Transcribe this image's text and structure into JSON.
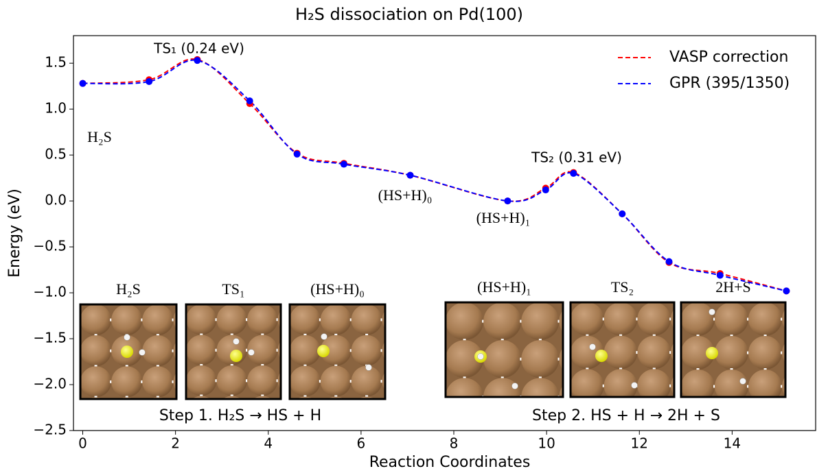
{
  "chart_data": {
    "type": "line",
    "title": "H₂S dissociation on Pd(100)",
    "xlabel": "Reaction Coordinates",
    "ylabel": "Energy (eV)",
    "x": [
      0,
      1.43,
      2.47,
      3.6,
      4.62,
      5.63,
      7.06,
      9.16,
      9.98,
      10.58,
      11.63,
      12.64,
      13.74,
      15.17
    ],
    "series": [
      {
        "name": "VASP correction",
        "color": "#ff0000",
        "values": [
          1.28,
          1.32,
          1.54,
          1.06,
          0.52,
          0.41,
          0.28,
          0.0,
          0.14,
          0.31,
          -0.14,
          -0.67,
          -0.79,
          -0.98
        ]
      },
      {
        "name": "GPR (395/1350)",
        "color": "#0000ff",
        "values": [
          1.28,
          1.3,
          1.53,
          1.09,
          0.51,
          0.4,
          0.28,
          0.0,
          0.12,
          0.3,
          -0.14,
          -0.66,
          -0.81,
          -0.98
        ]
      }
    ],
    "linestyle": "dashed",
    "xlim": [
      -0.2,
      15.8
    ],
    "ylim": [
      -2.5,
      1.8
    ],
    "xticks": [
      0,
      2,
      4,
      6,
      8,
      10,
      12,
      14
    ],
    "yticks": [
      1.5,
      {
        "value": 1,
        "label": "1.0"
      },
      0.5,
      {
        "value": 0,
        "label": "0.0"
      },
      {
        "value": -0.5,
        "label": "−0.5"
      },
      {
        "value": -1,
        "label": "−1.0"
      },
      {
        "value": -1.5,
        "label": "−1.5"
      },
      {
        "value": -2,
        "label": "−2.0"
      },
      {
        "value": -2.5,
        "label": "−2.5"
      }
    ],
    "legend": "upper right",
    "annotations": [
      "TS₁ (0.24 eV)",
      "H₂S",
      "TS₂ (0.31 eV)",
      "(HS+H)₀",
      "(HS+H)₁"
    ],
    "inset_labels": [
      "H₂S",
      "TS₁",
      "(HS+H)₀",
      "(HS+H)₁",
      "TS₂",
      "2H+S"
    ],
    "step_labels": [
      "Step 1. H₂S → HS + H",
      "Step 2. HS + H → 2H + S"
    ]
  }
}
